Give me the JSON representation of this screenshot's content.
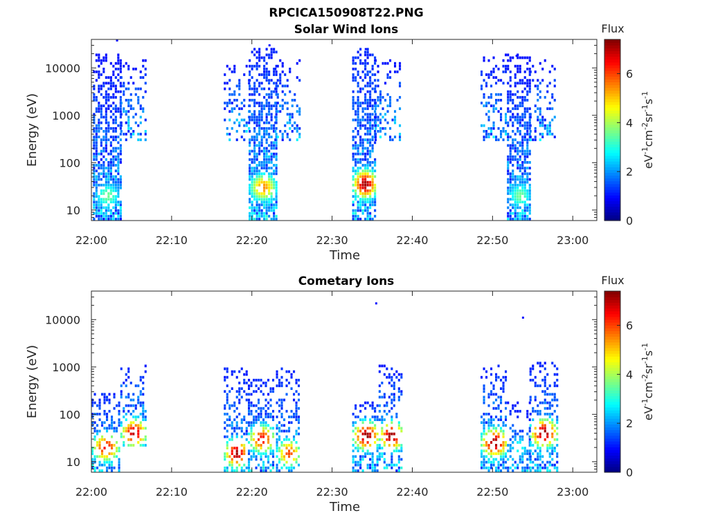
{
  "figure": {
    "title": "RPCICA150908T22.PNG"
  },
  "chart_data": [
    {
      "type": "heatmap",
      "title": "Solar Wind Ions",
      "xlabel": "Time",
      "ylabel": "Energy (eV)",
      "x_tick_labels": [
        "22:00",
        "22:10",
        "22:20",
        "22:30",
        "22:40",
        "22:50",
        "23:00"
      ],
      "x_range_minutes": [
        0,
        63
      ],
      "y_scale": "log",
      "y_tick_values": [
        10,
        100,
        1000,
        10000
      ],
      "y_tick_labels": [
        "10",
        "100",
        "1000",
        "10000"
      ],
      "y_range": [
        6,
        40000
      ],
      "colorbar": {
        "title": "Flux",
        "label_parts": [
          "eV",
          "-1",
          "cm",
          "-2",
          "sr",
          "-1",
          "s",
          "-1"
        ],
        "range": [
          0,
          7.4
        ],
        "ticks": [
          "0",
          "2",
          "4",
          "6"
        ],
        "colormap": "jet"
      },
      "bursts": [
        {
          "start": 0.2,
          "end": 3.6,
          "emin": 6,
          "emax": 20000,
          "peak_e": 20,
          "peak_v": 3.6,
          "density": 0.85
        },
        {
          "start": 3.6,
          "end": 6.8,
          "emin": 300,
          "emax": 15000,
          "peak_e": 2000,
          "peak_v": 1.8,
          "density": 0.35
        },
        {
          "start": 16.5,
          "end": 19.8,
          "emin": 300,
          "emax": 12000,
          "peak_e": 3000,
          "peak_v": 1.8,
          "density": 0.35
        },
        {
          "start": 19.6,
          "end": 23.0,
          "emin": 6,
          "emax": 25000,
          "peak_e": 30,
          "peak_v": 5.5,
          "density": 0.85
        },
        {
          "start": 22.8,
          "end": 26.0,
          "emin": 300,
          "emax": 15000,
          "peak_e": 2000,
          "peak_v": 1.8,
          "density": 0.35
        },
        {
          "start": 32.5,
          "end": 35.5,
          "emin": 6,
          "emax": 25000,
          "peak_e": 35,
          "peak_v": 7.2,
          "density": 0.85
        },
        {
          "start": 35.3,
          "end": 38.5,
          "emin": 300,
          "emax": 15000,
          "peak_e": 2000,
          "peak_v": 1.8,
          "density": 0.35
        },
        {
          "start": 48.5,
          "end": 51.8,
          "emin": 300,
          "emax": 20000,
          "peak_e": 3000,
          "peak_v": 1.8,
          "density": 0.35
        },
        {
          "start": 51.8,
          "end": 54.8,
          "emin": 6,
          "emax": 20000,
          "peak_e": 20,
          "peak_v": 3.6,
          "density": 0.85
        },
        {
          "start": 54.6,
          "end": 57.8,
          "emin": 300,
          "emax": 15000,
          "peak_e": 2000,
          "peak_v": 1.8,
          "density": 0.35
        }
      ],
      "isolated_points": [
        {
          "t": 3.2,
          "e": 38000,
          "v": 1.0
        },
        {
          "t": 22.2,
          "e": 30000,
          "v": 1.0
        },
        {
          "t": 34.2,
          "e": 25000,
          "v": 1.0
        },
        {
          "t": 53.0,
          "e": 18000,
          "v": 1.0
        }
      ]
    },
    {
      "type": "heatmap",
      "title": "Cometary Ions",
      "xlabel": "Time",
      "ylabel": "Energy (eV)",
      "x_tick_labels": [
        "22:00",
        "22:10",
        "22:20",
        "22:30",
        "22:40",
        "22:50",
        "23:00"
      ],
      "x_range_minutes": [
        0,
        63
      ],
      "y_scale": "log",
      "y_tick_values": [
        10,
        100,
        1000,
        10000
      ],
      "y_tick_labels": [
        "10",
        "100",
        "1000",
        "10000"
      ],
      "y_range": [
        6,
        40000
      ],
      "colorbar": {
        "title": "Flux",
        "label_parts": [
          "eV",
          "-1",
          "cm",
          "-2",
          "sr",
          "-1",
          "s",
          "-1"
        ],
        "range": [
          0,
          7.4
        ],
        "ticks": [
          "0",
          "2",
          "4",
          "6"
        ],
        "colormap": "jet"
      },
      "bursts": [
        {
          "start": 0.0,
          "end": 3.4,
          "emin": 6,
          "emax": 300,
          "peak_e": 20,
          "peak_v": 6.5,
          "density": 0.6
        },
        {
          "start": 3.6,
          "end": 6.8,
          "emin": 20,
          "emax": 1300,
          "peak_e": 40,
          "peak_v": 7.0,
          "density": 0.5
        },
        {
          "start": 16.5,
          "end": 19.5,
          "emin": 6,
          "emax": 1000,
          "peak_e": 15,
          "peak_v": 7.2,
          "density": 0.5
        },
        {
          "start": 19.5,
          "end": 22.8,
          "emin": 6,
          "emax": 600,
          "peak_e": 30,
          "peak_v": 6.5,
          "density": 0.6
        },
        {
          "start": 23.0,
          "end": 26.0,
          "emin": 6,
          "emax": 1000,
          "peak_e": 15,
          "peak_v": 6.0,
          "density": 0.5
        },
        {
          "start": 32.5,
          "end": 35.8,
          "emin": 6,
          "emax": 200,
          "peak_e": 35,
          "peak_v": 7.3,
          "density": 0.65
        },
        {
          "start": 35.8,
          "end": 38.8,
          "emin": 6,
          "emax": 1100,
          "peak_e": 35,
          "peak_v": 7.3,
          "density": 0.55
        },
        {
          "start": 48.5,
          "end": 51.8,
          "emin": 6,
          "emax": 1100,
          "peak_e": 25,
          "peak_v": 7.3,
          "density": 0.55
        },
        {
          "start": 51.8,
          "end": 54.6,
          "emin": 6,
          "emax": 200,
          "peak_e": 20,
          "peak_v": 3.0,
          "density": 0.4
        },
        {
          "start": 54.6,
          "end": 58.0,
          "emin": 6,
          "emax": 1200,
          "peak_e": 40,
          "peak_v": 7.3,
          "density": 0.55
        }
      ],
      "isolated_points": [
        {
          "t": 35.5,
          "e": 22000,
          "v": 1.0
        },
        {
          "t": 53.8,
          "e": 11000,
          "v": 1.0
        }
      ]
    }
  ]
}
